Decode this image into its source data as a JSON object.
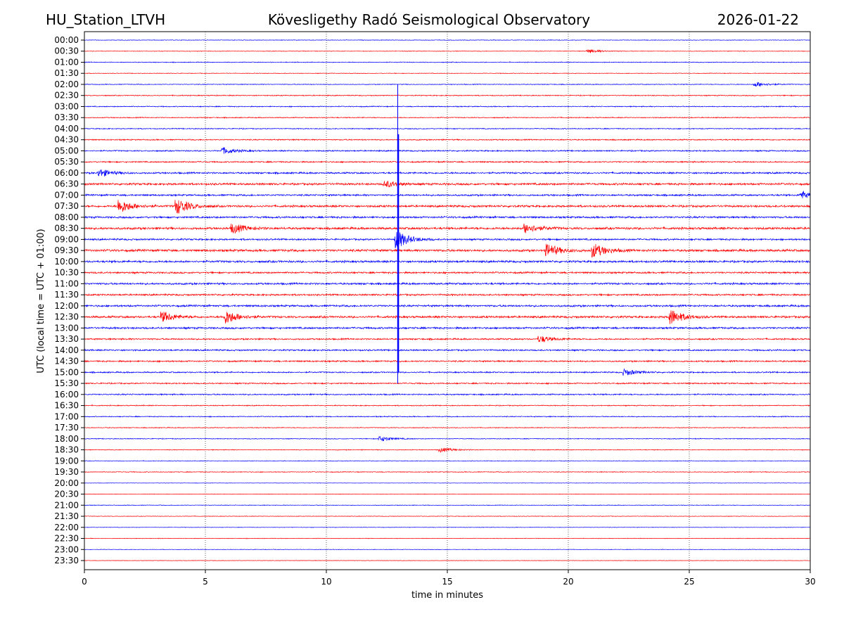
{
  "chart_data": {
    "type": "line",
    "title_left": "HU_Station_LTVH",
    "title": "Kövesligethy Radó Seismological Observatory",
    "title_right": "2026-01-22",
    "xlabel": "time in minutes",
    "ylabel": "UTC (local time = UTC + 01:00)",
    "xlim": [
      0,
      30
    ],
    "xticks": [
      "0",
      "5",
      "10",
      "15",
      "20",
      "25",
      "30"
    ],
    "grid": "vertical dotted at 5-minute intervals",
    "colors": [
      "#0000ff",
      "#ff0000"
    ],
    "rows": [
      "00:00",
      "00:30",
      "01:00",
      "01:30",
      "02:00",
      "02:30",
      "03:00",
      "03:30",
      "04:00",
      "04:30",
      "05:00",
      "05:30",
      "06:00",
      "06:30",
      "07:00",
      "07:30",
      "08:00",
      "08:30",
      "09:00",
      "09:30",
      "10:00",
      "10:30",
      "11:00",
      "11:30",
      "12:00",
      "12:30",
      "13:00",
      "13:30",
      "14:00",
      "14:30",
      "15:00",
      "15:30",
      "16:00",
      "16:30",
      "17:00",
      "17:30",
      "18:00",
      "18:30",
      "19:00",
      "19:30",
      "20:00",
      "20:30",
      "21:00",
      "21:30",
      "22:00",
      "22:30",
      "23:00",
      "23:30"
    ],
    "noise_level": [
      0.15,
      0.15,
      0.2,
      0.15,
      0.2,
      0.25,
      0.25,
      0.25,
      0.25,
      0.3,
      0.35,
      0.35,
      0.45,
      0.55,
      0.45,
      0.55,
      0.5,
      0.6,
      0.45,
      0.6,
      0.55,
      0.45,
      0.5,
      0.45,
      0.5,
      0.55,
      0.5,
      0.4,
      0.4,
      0.4,
      0.35,
      0.35,
      0.35,
      0.25,
      0.25,
      0.2,
      0.2,
      0.2,
      0.15,
      0.2,
      0.1,
      0.12,
      0.15,
      0.15,
      0.12,
      0.15,
      0.12,
      0.12
    ],
    "events": [
      {
        "row": "00:30",
        "minute": 20.9,
        "amp": 0.6
      },
      {
        "row": "02:00",
        "minute": 27.8,
        "amp": 0.8
      },
      {
        "row": "05:00",
        "minute": 5.8,
        "amp": 1.0
      },
      {
        "row": "06:00",
        "minute": 0.7,
        "amp": 1.2
      },
      {
        "row": "06:30",
        "minute": 12.5,
        "amp": 1.0
      },
      {
        "row": "07:00",
        "minute": 29.7,
        "amp": 1.2
      },
      {
        "row": "07:30",
        "minute": 1.5,
        "amp": 2.2
      },
      {
        "row": "07:30",
        "minute": 3.9,
        "amp": 2.4
      },
      {
        "row": "08:30",
        "minute": 6.2,
        "amp": 1.5
      },
      {
        "row": "08:30",
        "minute": 18.3,
        "amp": 1.5
      },
      {
        "row": "09:00",
        "minute": 12.95,
        "amp": 3.0
      },
      {
        "row": "09:30",
        "minute": 19.2,
        "amp": 2.0
      },
      {
        "row": "09:30",
        "minute": 21.1,
        "amp": 2.2
      },
      {
        "row": "12:30",
        "minute": 5.9,
        "amp": 2.2
      },
      {
        "row": "12:30",
        "minute": 24.3,
        "amp": 2.4
      },
      {
        "row": "12:30",
        "minute": 3.3,
        "amp": 1.6
      },
      {
        "row": "13:30",
        "minute": 18.9,
        "amp": 1.0
      },
      {
        "row": "15:00",
        "minute": 22.4,
        "amp": 1.0
      },
      {
        "row": "18:00",
        "minute": 12.3,
        "amp": 0.8
      },
      {
        "row": "18:30",
        "minute": 14.8,
        "amp": 0.7
      }
    ],
    "spike": {
      "minute": 12.95,
      "from_row": "02:00",
      "to_row": "15:30"
    }
  }
}
